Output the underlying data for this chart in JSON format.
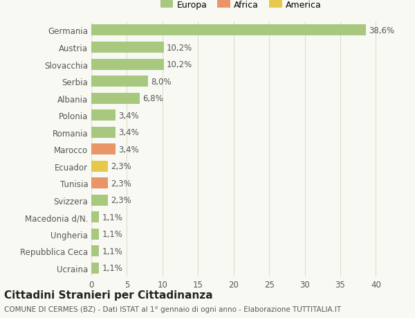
{
  "categories": [
    "Ucraina",
    "Repubblica Ceca",
    "Ungheria",
    "Macedonia d/N.",
    "Svizzera",
    "Tunisia",
    "Ecuador",
    "Marocco",
    "Romania",
    "Polonia",
    "Albania",
    "Serbia",
    "Slovacchia",
    "Austria",
    "Germania"
  ],
  "values": [
    1.1,
    1.1,
    1.1,
    1.1,
    2.3,
    2.3,
    2.3,
    3.4,
    3.4,
    3.4,
    6.8,
    8.0,
    10.2,
    10.2,
    38.6
  ],
  "colors": [
    "#a8c880",
    "#a8c880",
    "#a8c880",
    "#a8c880",
    "#a8c880",
    "#e8956a",
    "#e8c84a",
    "#e8956a",
    "#a8c880",
    "#a8c880",
    "#a8c880",
    "#a8c880",
    "#a8c880",
    "#a8c880",
    "#a8c880"
  ],
  "labels": [
    "1,1%",
    "1,1%",
    "1,1%",
    "1,1%",
    "2,3%",
    "2,3%",
    "2,3%",
    "3,4%",
    "3,4%",
    "3,4%",
    "6,8%",
    "8,0%",
    "10,2%",
    "10,2%",
    "38,6%"
  ],
  "legend_labels": [
    "Europa",
    "Africa",
    "America"
  ],
  "legend_colors": [
    "#a8c880",
    "#e8956a",
    "#e8c84a"
  ],
  "title": "Cittadini Stranieri per Cittadinanza",
  "subtitle": "COMUNE DI CERMES (BZ) - Dati ISTAT al 1° gennaio di ogni anno - Elaborazione TUTTITALIA.IT",
  "xlim": [
    0,
    42
  ],
  "xticks": [
    0,
    5,
    10,
    15,
    20,
    25,
    30,
    35,
    40
  ],
  "bg_color": "#f9f9f4",
  "grid_color": "#ddddcc",
  "bar_height": 0.65,
  "label_fontsize": 8.5,
  "tick_fontsize": 8.5,
  "title_fontsize": 11,
  "subtitle_fontsize": 7.5
}
